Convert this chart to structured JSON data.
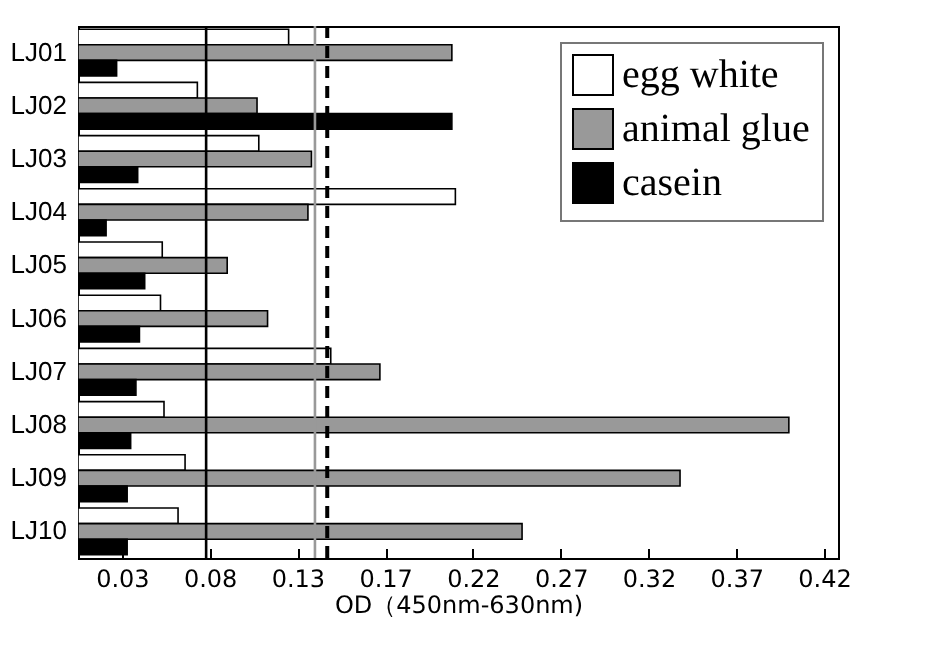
{
  "chart_data": {
    "type": "bar",
    "orientation": "horizontal",
    "xlabel": "OD（450nm-630nm)",
    "categories": [
      "LJ01",
      "LJ02",
      "LJ03",
      "LJ04",
      "LJ05",
      "LJ06",
      "LJ07",
      "LJ08",
      "LJ09",
      "LJ10"
    ],
    "series": [
      {
        "name": "egg white",
        "color": "#ffffff",
        "values": [
          0.12,
          0.068,
          0.103,
          0.215,
          0.048,
          0.047,
          0.144,
          0.049,
          0.061,
          0.057
        ]
      },
      {
        "name": "animal glue",
        "color": "#999999",
        "values": [
          0.213,
          0.102,
          0.133,
          0.131,
          0.085,
          0.108,
          0.172,
          0.405,
          0.343,
          0.253
        ]
      },
      {
        "name": "casein",
        "color": "#000000",
        "values": [
          0.022,
          0.213,
          0.034,
          0.016,
          0.038,
          0.035,
          0.033,
          0.03,
          0.028,
          0.028
        ]
      }
    ],
    "xlim": [
      0,
      0.433
    ],
    "xticks": [
      {
        "value": 0.025,
        "label": "0.03"
      },
      {
        "value": 0.075,
        "label": "0.08"
      },
      {
        "value": 0.125,
        "label": "0.13"
      },
      {
        "value": 0.175,
        "label": "0.17"
      },
      {
        "value": 0.225,
        "label": "0.22"
      },
      {
        "value": 0.275,
        "label": "0.27"
      },
      {
        "value": 0.325,
        "label": "0.32"
      },
      {
        "value": 0.375,
        "label": "0.37"
      },
      {
        "value": 0.425,
        "label": "0.42"
      }
    ],
    "ref_lines": [
      {
        "axis": "x",
        "value": 0.073,
        "color": "#000000",
        "line_style": "solid"
      },
      {
        "axis": "x",
        "value": 0.135,
        "color": "#999999",
        "line_style": "solid"
      },
      {
        "axis": "x",
        "value": 0.142,
        "color": "#000000",
        "line_style": "dashed"
      }
    ],
    "grid": false,
    "legend": "top right"
  }
}
